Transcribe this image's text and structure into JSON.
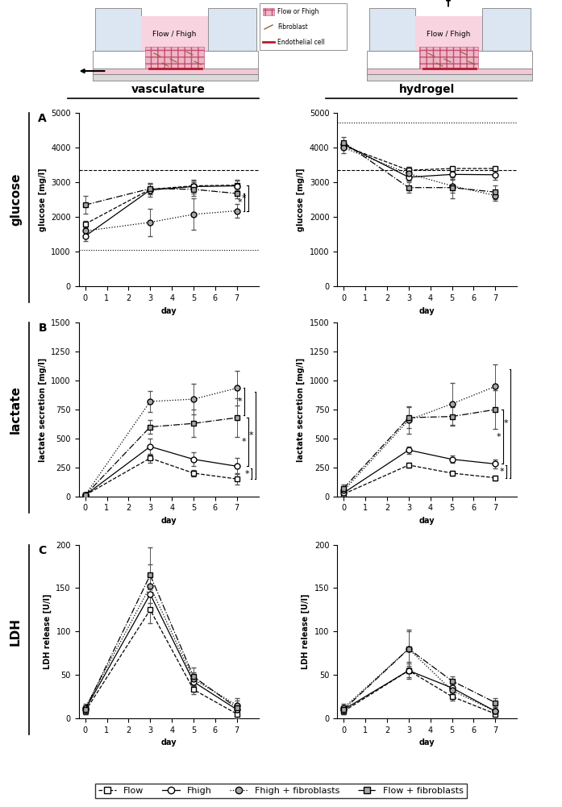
{
  "schematic": {
    "device_label": "Flow / Fhigh",
    "key": [
      "Flow or Fhigh",
      "Fibroblast",
      "Endothelial cell"
    ]
  },
  "columns": [
    "vasculature",
    "hydrogel"
  ],
  "rows": [
    {
      "letter": "A",
      "label": "glucose"
    },
    {
      "letter": "B",
      "label": "lactate"
    },
    {
      "letter": "C",
      "label": "LDH"
    }
  ],
  "chart_data": [
    {
      "type": "line",
      "xlabel": "day",
      "ylabel": "glucose [mg/l]",
      "x": [
        0,
        3,
        5,
        7
      ],
      "xlim": [
        -0.3,
        8
      ],
      "xticks": [
        0,
        1,
        2,
        3,
        4,
        5,
        6,
        7
      ],
      "ylim": [
        0,
        5000
      ],
      "yticks": [
        0,
        1000,
        2000,
        3000,
        4000,
        5000
      ],
      "legend": "bottom",
      "reference_lines": [
        {
          "y": 3350,
          "line_style": "dashed"
        },
        {
          "y": 1050,
          "line_style": "dotted"
        }
      ],
      "significance": [
        {
          "y1": 2680,
          "y2": 2180,
          "label": "*"
        },
        {
          "y1": 2920,
          "y2": 2180,
          "label": "*"
        }
      ],
      "series": [
        {
          "name": "Flow",
          "color": "#ffffff",
          "marker": "square",
          "line_style": "dashed",
          "values": [
            1800,
            2800,
            2900,
            2920
          ],
          "errors": [
            100,
            150,
            150,
            150
          ]
        },
        {
          "name": "Fhigh",
          "color": "#ffffff",
          "marker": "circle",
          "line_style": "solid",
          "values": [
            1450,
            2780,
            2880,
            2900
          ],
          "errors": [
            150,
            200,
            200,
            150
          ]
        },
        {
          "name": "Fhigh + fibroblasts",
          "color": "#a6a6a6",
          "marker": "circle",
          "line_style": "dotted",
          "values": [
            1600,
            1850,
            2080,
            2180
          ],
          "errors": [
            150,
            400,
            450,
            200
          ]
        },
        {
          "name": "Flow + fibroblasts",
          "color": "#a6a6a6",
          "marker": "square",
          "line_style": "dashdot",
          "values": [
            2350,
            2820,
            2800,
            2680
          ],
          "errors": [
            250,
            150,
            200,
            150
          ]
        }
      ]
    },
    {
      "type": "line",
      "xlabel": "day",
      "ylabel": "glucose [mg/l]",
      "x": [
        0,
        3,
        5,
        7
      ],
      "xlim": [
        -0.3,
        8
      ],
      "xticks": [
        0,
        1,
        2,
        3,
        4,
        5,
        6,
        7
      ],
      "ylim": [
        0,
        5000
      ],
      "yticks": [
        0,
        1000,
        2000,
        3000,
        4000,
        5000
      ],
      "reference_lines": [
        {
          "y": 4720,
          "line_style": "dotted"
        },
        {
          "y": 3350,
          "line_style": "dashed"
        }
      ],
      "significance": [],
      "series": [
        {
          "name": "Flow",
          "color": "#ffffff",
          "marker": "square",
          "line_style": "dashed",
          "values": [
            4050,
            3350,
            3400,
            3400
          ],
          "errors": [
            100,
            100,
            50,
            50
          ]
        },
        {
          "name": "Fhigh",
          "color": "#ffffff",
          "marker": "circle",
          "line_style": "solid",
          "values": [
            4100,
            3150,
            3230,
            3220
          ],
          "errors": [
            100,
            100,
            150,
            150
          ]
        },
        {
          "name": "Fhigh + fibroblasts",
          "color": "#a6a6a6",
          "marker": "circle",
          "line_style": "dotted",
          "values": [
            4000,
            3250,
            2900,
            2620
          ],
          "errors": [
            150,
            200,
            200,
            150
          ]
        },
        {
          "name": "Flow + fibroblasts",
          "color": "#a6a6a6",
          "marker": "square",
          "line_style": "dashdot",
          "values": [
            4150,
            2850,
            2850,
            2720
          ],
          "errors": [
            150,
            150,
            300,
            200
          ]
        }
      ]
    },
    {
      "type": "line",
      "xlabel": "day",
      "ylabel": "lactate secretion [mg/l]",
      "x": [
        0,
        3,
        5,
        7
      ],
      "xlim": [
        -0.3,
        8
      ],
      "xticks": [
        0,
        1,
        2,
        3,
        4,
        5,
        6,
        7
      ],
      "ylim": [
        0,
        1500
      ],
      "yticks": [
        0,
        250,
        500,
        750,
        1000,
        1250,
        1500
      ],
      "reference_lines": [],
      "significance": [
        {
          "y1": 935,
          "y2": 700,
          "label": "*"
        },
        {
          "y1": 680,
          "y2": 260,
          "label": "*"
        },
        {
          "y1": 240,
          "y2": 150,
          "label": "*"
        },
        {
          "y1": 900,
          "y2": 150,
          "label": "*"
        }
      ],
      "series": [
        {
          "name": "Flow",
          "color": "#ffffff",
          "marker": "square",
          "line_style": "dashed",
          "values": [
            10,
            330,
            200,
            150
          ],
          "errors": [
            5,
            40,
            30,
            50
          ]
        },
        {
          "name": "Fhigh",
          "color": "#ffffff",
          "marker": "circle",
          "line_style": "solid",
          "values": [
            10,
            430,
            320,
            260
          ],
          "errors": [
            5,
            70,
            60,
            70
          ]
        },
        {
          "name": "Fhigh + fibroblasts",
          "color": "#a6a6a6",
          "marker": "circle",
          "line_style": "dotted",
          "values": [
            10,
            820,
            840,
            935
          ],
          "errors": [
            5,
            90,
            130,
            150
          ]
        },
        {
          "name": "Flow + fibroblasts",
          "color": "#a6a6a6",
          "marker": "square",
          "line_style": "dashdot",
          "values": [
            10,
            600,
            630,
            680
          ],
          "errors": [
            5,
            60,
            120,
            170
          ]
        }
      ]
    },
    {
      "type": "line",
      "xlabel": "day",
      "ylabel": "lactate secretion [mg/l]",
      "x": [
        0,
        3,
        5,
        7
      ],
      "xlim": [
        -0.3,
        8
      ],
      "xticks": [
        0,
        1,
        2,
        3,
        4,
        5,
        6,
        7
      ],
      "ylim": [
        0,
        1500
      ],
      "yticks": [
        0,
        250,
        500,
        750,
        1000,
        1250,
        1500
      ],
      "reference_lines": [],
      "significance": [
        {
          "y1": 750,
          "y2": 280,
          "label": "*"
        },
        {
          "y1": 270,
          "y2": 160,
          "label": "*"
        },
        {
          "y1": 1100,
          "y2": 160,
          "label": "*"
        }
      ],
      "series": [
        {
          "name": "Flow",
          "color": "#ffffff",
          "marker": "square",
          "line_style": "dashed",
          "values": [
            20,
            270,
            200,
            160
          ],
          "errors": [
            5,
            20,
            20,
            20
          ]
        },
        {
          "name": "Fhigh",
          "color": "#ffffff",
          "marker": "circle",
          "line_style": "solid",
          "values": [
            30,
            400,
            320,
            280
          ],
          "errors": [
            10,
            30,
            30,
            40
          ]
        },
        {
          "name": "Fhigh + fibroblasts",
          "color": "#a6a6a6",
          "marker": "circle",
          "line_style": "dotted",
          "values": [
            50,
            660,
            800,
            950
          ],
          "errors": [
            20,
            120,
            180,
            190
          ]
        },
        {
          "name": "Flow + fibroblasts",
          "color": "#a6a6a6",
          "marker": "square",
          "line_style": "dashdot",
          "values": [
            70,
            680,
            690,
            750
          ],
          "errors": [
            30,
            90,
            80,
            170
          ]
        }
      ]
    },
    {
      "type": "line",
      "xlabel": "day",
      "ylabel": "LDH release [U/l]",
      "x": [
        0,
        3,
        5,
        7
      ],
      "xlim": [
        -0.3,
        8
      ],
      "xticks": [
        0,
        1,
        2,
        3,
        4,
        5,
        6,
        7
      ],
      "ylim": [
        0,
        200
      ],
      "yticks": [
        0,
        50,
        100,
        150,
        200
      ],
      "reference_lines": [],
      "significance": [],
      "series": [
        {
          "name": "Flow",
          "color": "#ffffff",
          "marker": "square",
          "line_style": "dashed",
          "values": [
            8,
            125,
            33,
            5
          ],
          "errors": [
            3,
            15,
            5,
            5
          ]
        },
        {
          "name": "Fhigh",
          "color": "#ffffff",
          "marker": "circle",
          "line_style": "solid",
          "values": [
            10,
            143,
            42,
            10
          ],
          "errors": [
            3,
            20,
            5,
            5
          ]
        },
        {
          "name": "Fhigh + fibroblasts",
          "color": "#a6a6a6",
          "marker": "circle",
          "line_style": "dotted",
          "values": [
            12,
            152,
            45,
            15
          ],
          "errors": [
            5,
            25,
            8,
            8
          ]
        },
        {
          "name": "Flow + fibroblasts",
          "color": "#a6a6a6",
          "marker": "square",
          "line_style": "dashdot",
          "values": [
            10,
            165,
            48,
            12
          ],
          "errors": [
            5,
            32,
            10,
            8
          ]
        }
      ]
    },
    {
      "type": "line",
      "xlabel": "day",
      "ylabel": "LDH release [U/l]",
      "x": [
        0,
        3,
        5,
        7
      ],
      "xlim": [
        -0.3,
        8
      ],
      "xticks": [
        0,
        1,
        2,
        3,
        4,
        5,
        6,
        7
      ],
      "ylim": [
        0,
        200
      ],
      "yticks": [
        0,
        50,
        100,
        150,
        200
      ],
      "reference_lines": [],
      "significance": [],
      "series": [
        {
          "name": "Flow",
          "color": "#ffffff",
          "marker": "square",
          "line_style": "dashed",
          "values": [
            8,
            55,
            25,
            5
          ],
          "errors": [
            3,
            8,
            5,
            3
          ]
        },
        {
          "name": "Fhigh",
          "color": "#ffffff",
          "marker": "circle",
          "line_style": "solid",
          "values": [
            10,
            55,
            35,
            8
          ],
          "errors": [
            3,
            10,
            5,
            3
          ]
        },
        {
          "name": "Fhigh + fibroblasts",
          "color": "#a6a6a6",
          "marker": "circle",
          "line_style": "dotted",
          "values": [
            12,
            80,
            32,
            8
          ],
          "errors": [
            5,
            22,
            5,
            5
          ]
        },
        {
          "name": "Flow + fibroblasts",
          "color": "#a6a6a6",
          "marker": "square",
          "line_style": "dashdot",
          "values": [
            10,
            80,
            43,
            18
          ],
          "errors": [
            5,
            20,
            5,
            5
          ]
        }
      ]
    }
  ]
}
